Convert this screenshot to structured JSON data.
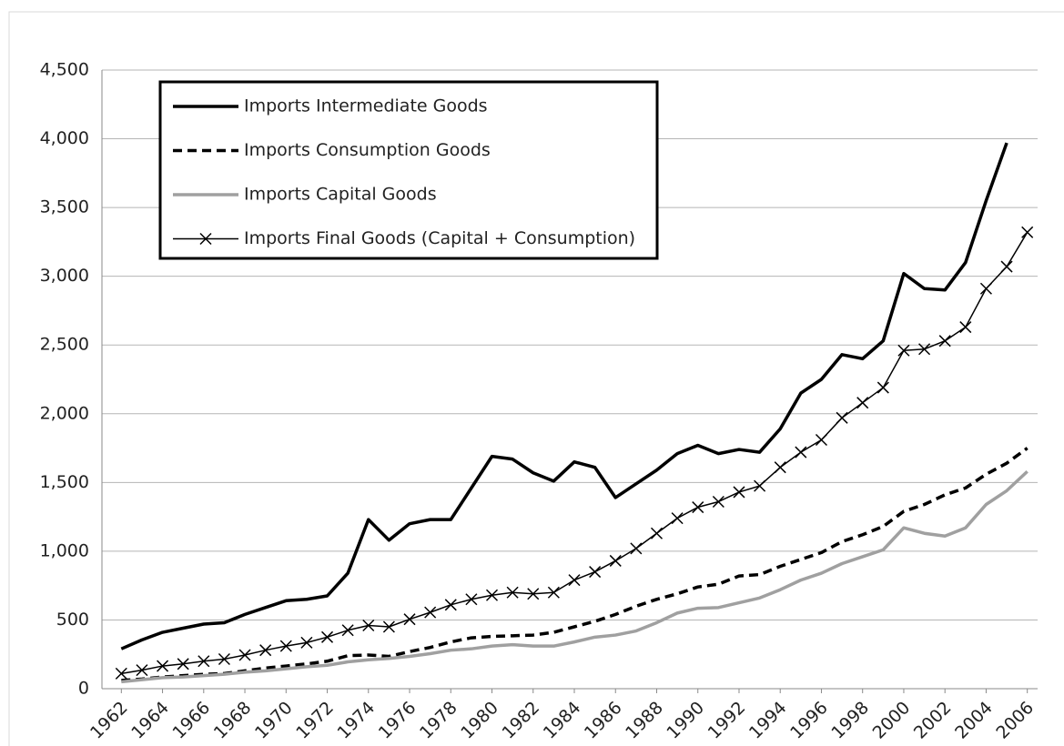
{
  "chart_data": {
    "type": "line",
    "x": [
      1962,
      1963,
      1964,
      1965,
      1966,
      1967,
      1968,
      1969,
      1970,
      1971,
      1972,
      1973,
      1974,
      1975,
      1976,
      1977,
      1978,
      1979,
      1980,
      1981,
      1982,
      1983,
      1984,
      1985,
      1986,
      1987,
      1988,
      1989,
      1990,
      1991,
      1992,
      1993,
      1994,
      1995,
      1996,
      1997,
      1998,
      1999,
      2000,
      2001,
      2002,
      2003,
      2004,
      2005,
      2006
    ],
    "xlim": [
      1961.5,
      2006.5
    ],
    "xticks": [
      1962,
      1964,
      1966,
      1968,
      1970,
      1972,
      1974,
      1976,
      1978,
      1980,
      1982,
      1984,
      1986,
      1988,
      1990,
      1992,
      1994,
      1996,
      1998,
      2000,
      2002,
      2004,
      2006
    ],
    "ylim": [
      0,
      4500
    ],
    "yticks": [
      0,
      500,
      {
        "value": 1000,
        "label": "1,000"
      },
      {
        "value": 1500,
        "label": "1,500"
      },
      {
        "value": 2000,
        "label": "2,000"
      },
      {
        "value": 2500,
        "label": "2,500"
      },
      {
        "value": 3000,
        "label": "3,000"
      },
      {
        "value": 3500,
        "label": "3,500"
      },
      {
        "value": 4000,
        "label": "4,000"
      },
      {
        "value": 4500,
        "label": "4,500"
      }
    ],
    "grid": true,
    "legend": "upper left",
    "series": [
      {
        "name": "Imports Intermediate Goods",
        "color": "#000000",
        "line_style": "solid",
        "linewidth": 3.5,
        "values": [
          290,
          355,
          410,
          440,
          470,
          480,
          540,
          590,
          640,
          650,
          675,
          840,
          1230,
          1080,
          1200,
          1230,
          1230,
          1460,
          1690,
          1670,
          1570,
          1510,
          1650,
          1610,
          1390,
          1490,
          1590,
          1710,
          1770,
          1710,
          1740,
          1720,
          1890,
          2150,
          2250,
          2430,
          2400,
          2530,
          3020,
          2910,
          2900,
          3100,
          3550,
          3970,
          null
        ]
      },
      {
        "name": "Imports Consumption Goods",
        "color": "#000000",
        "line_style": "dashed",
        "linewidth": 3.5,
        "values": [
          60,
          70,
          85,
          95,
          105,
          110,
          130,
          150,
          165,
          180,
          200,
          240,
          245,
          235,
          270,
          300,
          340,
          370,
          380,
          385,
          390,
          410,
          450,
          490,
          540,
          600,
          650,
          690,
          740,
          760,
          820,
          830,
          890,
          940,
          990,
          1070,
          1120,
          1180,
          1290,
          1340,
          1410,
          1460,
          1560,
          1640,
          1750
        ]
      },
      {
        "name": "Imports Capital Goods",
        "color": "#a0a0a0",
        "line_style": "solid",
        "linewidth": 3.5,
        "values": [
          50,
          65,
          80,
          85,
          95,
          105,
          120,
          130,
          145,
          160,
          170,
          195,
          210,
          220,
          235,
          255,
          280,
          290,
          310,
          320,
          310,
          310,
          340,
          375,
          390,
          420,
          480,
          550,
          585,
          590,
          625,
          660,
          720,
          790,
          840,
          910,
          960,
          1010,
          1170,
          1130,
          1110,
          1170,
          1340,
          1440,
          1580
        ]
      },
      {
        "name": "Imports Final Goods (Capital + Consumption)",
        "color": "#000000",
        "line_style": "solid",
        "linewidth": 1.5,
        "marker": "x",
        "values": [
          110,
          135,
          165,
          180,
          200,
          215,
          245,
          280,
          310,
          335,
          375,
          425,
          460,
          450,
          505,
          555,
          610,
          650,
          680,
          700,
          690,
          700,
          790,
          850,
          930,
          1020,
          1130,
          1240,
          1320,
          1360,
          1430,
          1475,
          1610,
          1720,
          1810,
          1970,
          2080,
          2190,
          2460,
          2470,
          2530,
          2630,
          2910,
          3070,
          3320
        ]
      }
    ]
  }
}
